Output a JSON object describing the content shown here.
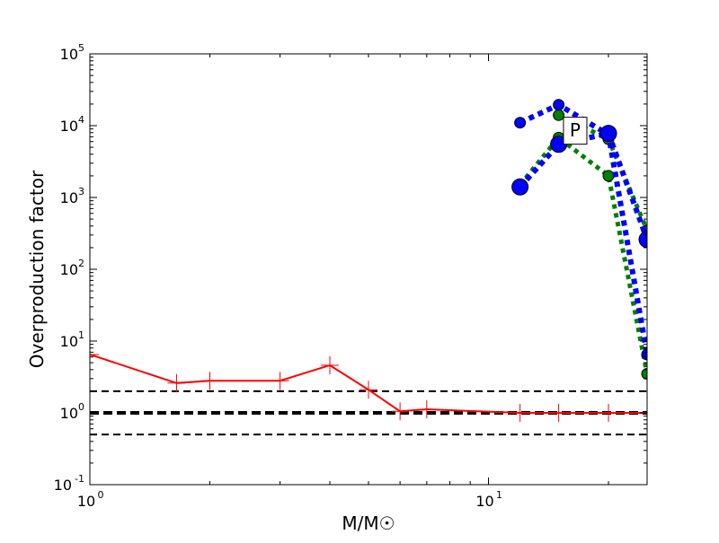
{
  "chart_data": {
    "type": "line",
    "xlabel": "M/M☉",
    "ylabel": "Overproduction factor",
    "x_scale": "log",
    "y_scale": "log",
    "xlim": [
      1,
      25
    ],
    "ylim": [
      0.1,
      100000
    ],
    "x_ticks": [
      {
        "value": 1,
        "base": "10",
        "exp": "0"
      },
      {
        "value": 10,
        "base": "10",
        "exp": "1"
      }
    ],
    "y_ticks": [
      {
        "value": 0.1,
        "base": "10",
        "exp": "-1"
      },
      {
        "value": 1,
        "base": "10",
        "exp": "0"
      },
      {
        "value": 10,
        "base": "10",
        "exp": "1"
      },
      {
        "value": 100,
        "base": "10",
        "exp": "2"
      },
      {
        "value": 1000,
        "base": "10",
        "exp": "3"
      },
      {
        "value": 10000,
        "base": "10",
        "exp": "4"
      },
      {
        "value": 100000,
        "base": "10",
        "exp": "5"
      }
    ],
    "reference_lines": [
      {
        "y": 2,
        "style": "dashed",
        "color": "#000000"
      },
      {
        "y": 1,
        "style": "dashed-thick",
        "color": "#000000"
      },
      {
        "y": 0.5,
        "style": "dashed",
        "color": "#000000"
      }
    ],
    "annotation": {
      "text": "P",
      "x": 16.5,
      "y": 8500
    },
    "series": [
      {
        "color": "#ff0000",
        "line": "solid",
        "marker": "plus",
        "x": [
          1.0,
          1.65,
          2.0,
          3.0,
          4.0,
          5.0,
          6.0,
          7.0,
          12.0,
          15.0,
          20.0,
          25.0
        ],
        "y": [
          6.5,
          2.6,
          2.8,
          2.8,
          4.6,
          2.1,
          1.05,
          1.12,
          1.0,
          1.0,
          1.0,
          1.0
        ]
      },
      {
        "color": "#008000",
        "line": "dotted",
        "marker": "circle",
        "x": [
          12.0,
          15.0,
          20.0,
          25.0
        ],
        "y": [
          1500,
          6800,
          2000,
          3.5
        ]
      },
      {
        "color": "#008000",
        "line": "dotted",
        "marker": "circle",
        "x": [
          15.0,
          20.0,
          25.0
        ],
        "y": [
          14000,
          6500,
          350
        ]
      },
      {
        "color": "#0000ff",
        "line": "dotted-thick",
        "marker": "circle",
        "x": [
          12.0,
          15.0,
          20.0,
          25.0
        ],
        "y": [
          11000,
          19500,
          7500,
          6.5
        ]
      },
      {
        "color": "#0000ff",
        "line": "dotted-thick",
        "marker": "circle-large",
        "x": [
          12.0,
          15.0,
          20.0,
          25.0
        ],
        "y": [
          1400,
          5500,
          7800,
          260
        ]
      }
    ]
  }
}
